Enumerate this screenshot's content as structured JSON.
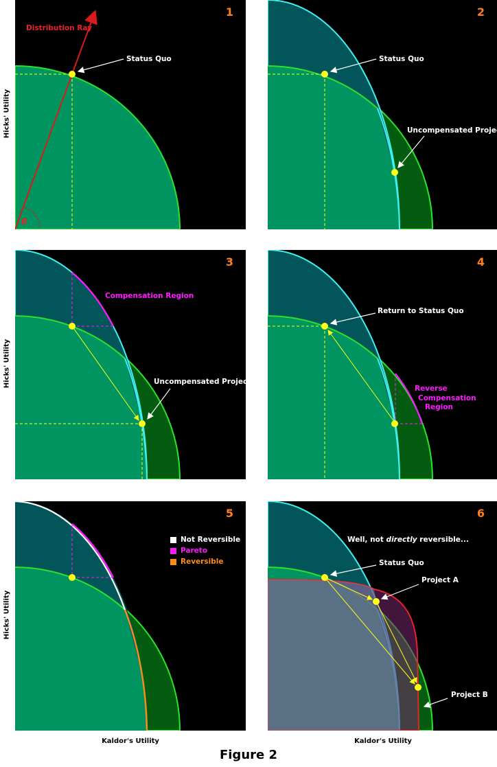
{
  "figure_caption": "Figure 2",
  "axis": {
    "y_label": "Hicks' Utility",
    "x_label": "Kaldor's Utility"
  },
  "colors": {
    "background": "#000000",
    "sq_frontier_fill": "#009460",
    "sq_frontier_line": "#2be32b",
    "project_frontier_fill": "#02565a",
    "project_frontier_line": "#3ef0f0",
    "dark_green": "#045c10",
    "point": "#ffff19",
    "distribution_ray": "#d81b1b",
    "compensation": "#ff19ff",
    "reversible": "#ff8c1a",
    "not_reversible": "#ffffff",
    "panel_number": "#ff7f1f"
  },
  "panels": [
    {
      "number": "1",
      "labels": {
        "distribution_ray": "Distribution Ray",
        "status_quo": "Status Quo",
        "theta": "θ"
      }
    },
    {
      "number": "2",
      "labels": {
        "status_quo": "Status Quo",
        "uncompensated_project": "Uncompensated Project"
      }
    },
    {
      "number": "3",
      "labels": {
        "compensation_region": "Compensation Region",
        "uncompensated_project": "Uncompensated Project"
      }
    },
    {
      "number": "4",
      "labels": {
        "return_to_sq": "Return to Status Quo",
        "reverse_line1": "Reverse",
        "reverse_line2": "Compensation",
        "reverse_line3": "Region"
      }
    },
    {
      "number": "5",
      "legend": [
        {
          "label": "Not Reversible",
          "color": "#ffffff"
        },
        {
          "label": "Pareto",
          "color": "#ff19ff"
        },
        {
          "label": "Reversible",
          "color": "#ff8c1a"
        }
      ]
    },
    {
      "number": "6",
      "labels": {
        "note_pre": "Well, not ",
        "note_em": "directly",
        "note_post": " reversible...",
        "status_quo": "Status Quo",
        "project_a": "Project A",
        "project_b": "Project B"
      }
    }
  ]
}
